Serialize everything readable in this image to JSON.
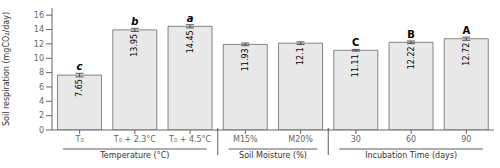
{
  "chart_data": {
    "type": "bar",
    "categories": [
      "T₀",
      "T₀ + 2.3°C",
      "T₀ + 4.5°C",
      "M15%",
      "M20%",
      "30",
      "60",
      "90"
    ],
    "values": [
      7.65,
      13.95,
      14.45,
      11.93,
      12.1,
      11.11,
      12.22,
      12.72
    ],
    "error_bars": [
      0.25,
      0.22,
      0.22,
      0.18,
      0.18,
      0.12,
      0.18,
      0.22
    ],
    "letters": [
      "c",
      "b",
      "a",
      null,
      null,
      "C",
      "B",
      "A"
    ],
    "data_labels": true,
    "color": "#e8e8e8",
    "ylim": [
      0,
      17
    ],
    "yticks": [
      0,
      2,
      4,
      6,
      8,
      10,
      12,
      14,
      16
    ],
    "ylabel": "Soil respiration (mgCO₂/day)",
    "groups": [
      {
        "label": "Temperature (°C)",
        "categories": [
          "T₀",
          "T₀ + 2.3°C",
          "T₀ + 4.5°C"
        ]
      },
      {
        "label": "Soil Moisture (%)",
        "categories": [
          "M15%",
          "M20%"
        ]
      },
      {
        "label": "Incubation Time (days)",
        "categories": [
          "30",
          "60",
          "90"
        ]
      }
    ],
    "grid": false
  }
}
